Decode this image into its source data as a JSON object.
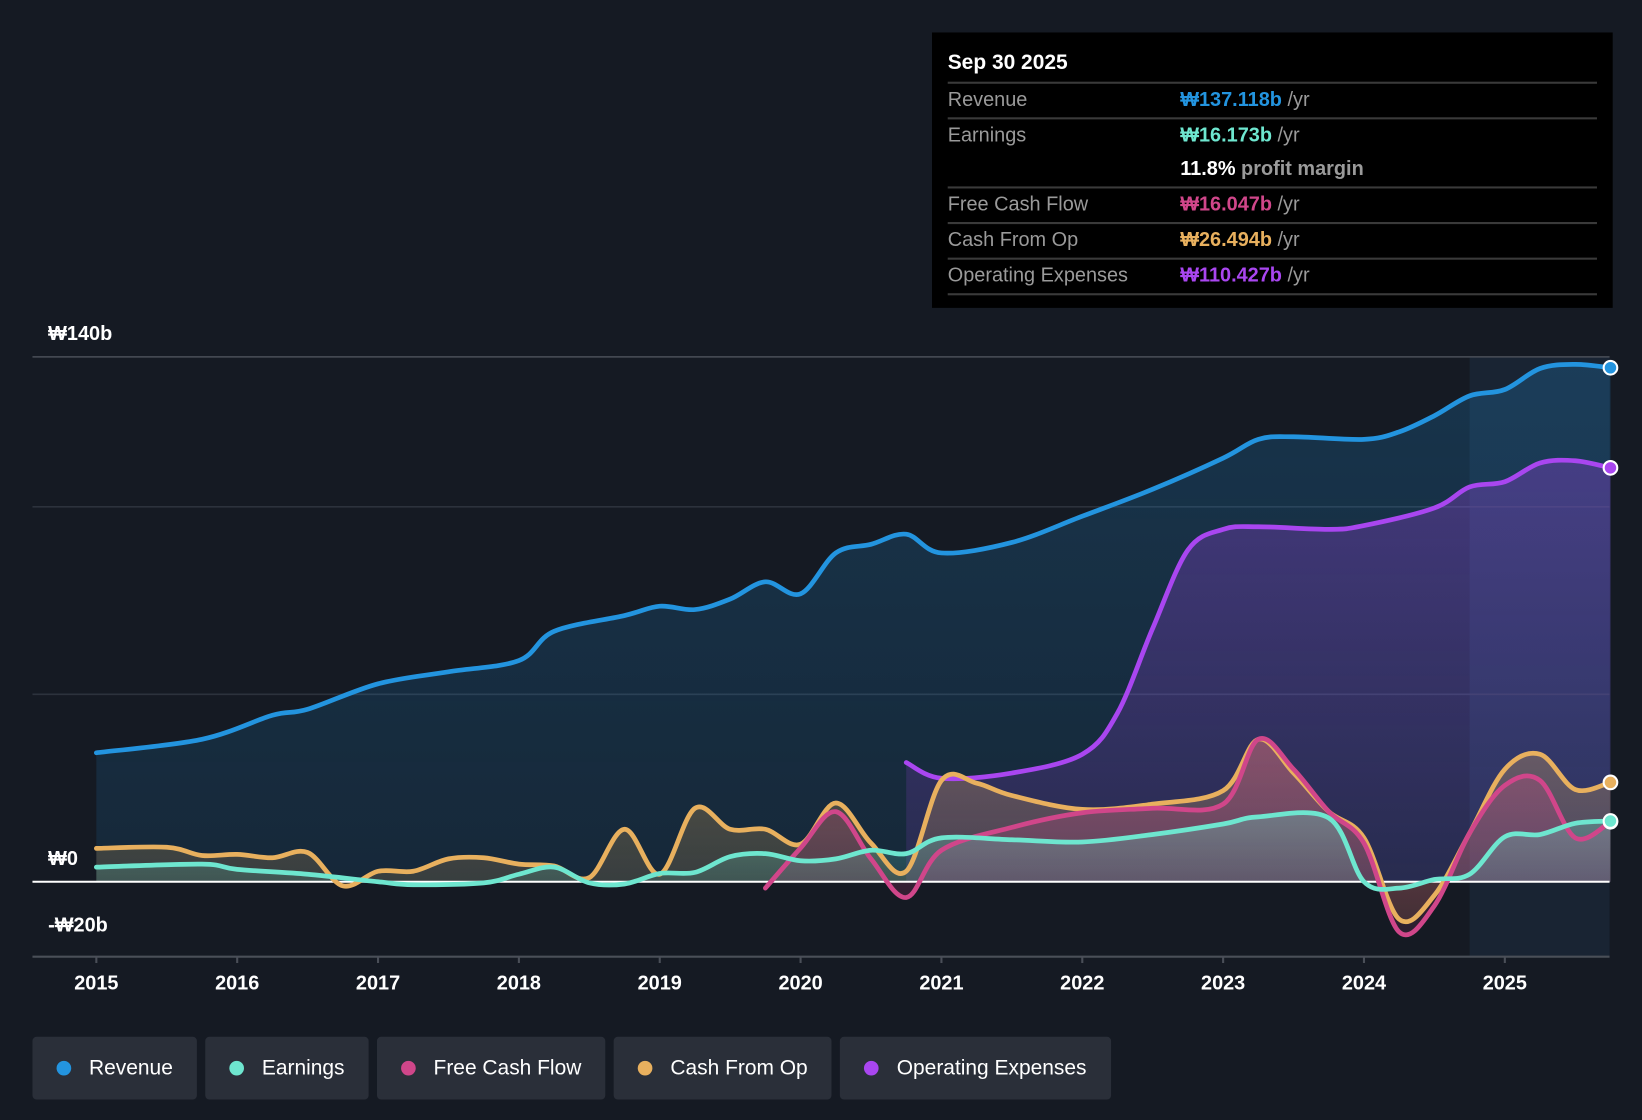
{
  "tooltip": {
    "date": "Sep 30 2025",
    "rows": [
      {
        "label": "Revenue",
        "value": "₩137.118b",
        "unit": "/yr",
        "color": "#2394df"
      },
      {
        "label": "Earnings",
        "value": "₩16.173b",
        "unit": "/yr",
        "color": "#6ee6cf"
      },
      {
        "label": "",
        "value": "11.8%",
        "unit": "profit margin",
        "color": "#ffffff"
      },
      {
        "label": "Free Cash Flow",
        "value": "₩16.047b",
        "unit": "/yr",
        "color": "#d0468a"
      },
      {
        "label": "Cash From Op",
        "value": "₩26.494b",
        "unit": "/yr",
        "color": "#e8b05e"
      },
      {
        "label": "Operating Expenses",
        "value": "₩110.427b",
        "unit": "/yr",
        "color": "#a946f0"
      }
    ]
  },
  "legend": [
    {
      "label": "Revenue",
      "color": "#2394df"
    },
    {
      "label": "Earnings",
      "color": "#6ee6cf"
    },
    {
      "label": "Free Cash Flow",
      "color": "#d0468a"
    },
    {
      "label": "Cash From Op",
      "color": "#e8b05e"
    },
    {
      "label": "Operating Expenses",
      "color": "#a946f0"
    }
  ],
  "chart_data": {
    "type": "line",
    "xlabel": "",
    "ylabel": "",
    "ylim": [
      -20,
      140
    ],
    "y_tick_labels": [
      {
        "v": 140,
        "label": "₩140b"
      },
      {
        "v": 0,
        "label": "₩0"
      },
      {
        "v": -20,
        "label": "-₩20b"
      }
    ],
    "gridlines": [
      140,
      100,
      50
    ],
    "x_ticks": [
      2015,
      2016,
      2017,
      2018,
      2019,
      2020,
      2021,
      2022,
      2023,
      2024,
      2025
    ],
    "xlim": [
      2014.55,
      2025.75
    ],
    "highlight_from": 2024.75,
    "series": [
      {
        "name": "Revenue",
        "color": "#2394df",
        "points": [
          [
            2015,
            34.4
          ],
          [
            2015.75,
            38
          ],
          [
            2016.25,
            44.4
          ],
          [
            2016.5,
            46
          ],
          [
            2017,
            52.8
          ],
          [
            2017.5,
            56
          ],
          [
            2018,
            59
          ],
          [
            2018.25,
            66.8
          ],
          [
            2018.75,
            71
          ],
          [
            2019,
            73.5
          ],
          [
            2019.25,
            72.6
          ],
          [
            2019.5,
            75.4
          ],
          [
            2019.75,
            80
          ],
          [
            2020,
            76.8
          ],
          [
            2020.25,
            87.7
          ],
          [
            2020.5,
            90
          ],
          [
            2020.75,
            92.7
          ],
          [
            2021,
            87.7
          ],
          [
            2021.5,
            90.5
          ],
          [
            2022,
            97.5
          ],
          [
            2022.5,
            104.7
          ],
          [
            2023,
            113
          ],
          [
            2023.25,
            118
          ],
          [
            2023.5,
            118.7
          ],
          [
            2024,
            118
          ],
          [
            2024.25,
            120
          ],
          [
            2024.5,
            124.3
          ],
          [
            2024.75,
            129.6
          ],
          [
            2025,
            131.3
          ],
          [
            2025.25,
            136.9
          ],
          [
            2025.5,
            138
          ],
          [
            2025.75,
            137.1
          ]
        ]
      },
      {
        "name": "Operating Expenses",
        "color": "#a946f0",
        "points": [
          [
            2020.75,
            31.8
          ],
          [
            2021,
            27.6
          ],
          [
            2021.5,
            29
          ],
          [
            2022,
            34
          ],
          [
            2022.25,
            45
          ],
          [
            2022.5,
            67.6
          ],
          [
            2022.75,
            88.5
          ],
          [
            2023,
            94
          ],
          [
            2023.25,
            94.7
          ],
          [
            2023.75,
            94
          ],
          [
            2024,
            95
          ],
          [
            2024.5,
            99.7
          ],
          [
            2024.75,
            105.3
          ],
          [
            2025,
            106.7
          ],
          [
            2025.25,
            111.7
          ],
          [
            2025.5,
            112.3
          ],
          [
            2025.75,
            110.4
          ]
        ]
      },
      {
        "name": "Cash From Op",
        "color": "#e8b05e",
        "points": [
          [
            2015,
            8.9
          ],
          [
            2015.5,
            9.2
          ],
          [
            2015.75,
            7
          ],
          [
            2016,
            7.3
          ],
          [
            2016.25,
            6.4
          ],
          [
            2016.5,
            7.8
          ],
          [
            2016.75,
            -1.1
          ],
          [
            2017,
            2.8
          ],
          [
            2017.25,
            2.8
          ],
          [
            2017.5,
            6.1
          ],
          [
            2017.75,
            6.4
          ],
          [
            2018,
            4.7
          ],
          [
            2018.25,
            4.2
          ],
          [
            2018.5,
            1.1
          ],
          [
            2018.75,
            14
          ],
          [
            2019,
            2
          ],
          [
            2019.25,
            19.6
          ],
          [
            2019.5,
            14
          ],
          [
            2019.75,
            14
          ],
          [
            2020,
            10
          ],
          [
            2020.25,
            21
          ],
          [
            2020.5,
            10.3
          ],
          [
            2020.75,
            2.8
          ],
          [
            2021,
            27
          ],
          [
            2021.25,
            26.3
          ],
          [
            2021.5,
            23
          ],
          [
            2022,
            19.3
          ],
          [
            2022.5,
            20.7
          ],
          [
            2023,
            24.3
          ],
          [
            2023.25,
            38
          ],
          [
            2023.5,
            29
          ],
          [
            2023.75,
            18.7
          ],
          [
            2024,
            11.7
          ],
          [
            2024.25,
            -10
          ],
          [
            2024.5,
            -3.6
          ],
          [
            2024.75,
            13
          ],
          [
            2025,
            30
          ],
          [
            2025.25,
            34
          ],
          [
            2025.5,
            24.6
          ],
          [
            2025.75,
            26.5
          ]
        ]
      },
      {
        "name": "Free Cash Flow",
        "color": "#d0468a",
        "points": [
          [
            2019.75,
            -1.7
          ],
          [
            2020,
            9
          ],
          [
            2020.25,
            18.7
          ],
          [
            2020.5,
            6.1
          ],
          [
            2020.75,
            -4.2
          ],
          [
            2021,
            8.4
          ],
          [
            2021.5,
            14.5
          ],
          [
            2022,
            18.4
          ],
          [
            2022.5,
            19.6
          ],
          [
            2023,
            20.7
          ],
          [
            2023.25,
            38
          ],
          [
            2023.5,
            30
          ],
          [
            2023.75,
            18.7
          ],
          [
            2024,
            10.3
          ],
          [
            2024.25,
            -13.4
          ],
          [
            2024.5,
            -6.4
          ],
          [
            2024.75,
            13
          ],
          [
            2025,
            25.7
          ],
          [
            2025.25,
            27
          ],
          [
            2025.5,
            11.7
          ],
          [
            2025.75,
            16
          ]
        ]
      },
      {
        "name": "Earnings",
        "color": "#6ee6cf",
        "points": [
          [
            2015,
            3.9
          ],
          [
            2015.75,
            4.7
          ],
          [
            2016,
            3.3
          ],
          [
            2016.5,
            2
          ],
          [
            2017,
            0
          ],
          [
            2017.25,
            -0.8
          ],
          [
            2017.75,
            -0.3
          ],
          [
            2018,
            2
          ],
          [
            2018.25,
            3.9
          ],
          [
            2018.5,
            -0.3
          ],
          [
            2018.75,
            -0.6
          ],
          [
            2019,
            2.2
          ],
          [
            2019.25,
            2.5
          ],
          [
            2019.5,
            6.7
          ],
          [
            2019.75,
            7.5
          ],
          [
            2020,
            5.6
          ],
          [
            2020.25,
            6.1
          ],
          [
            2020.5,
            8.4
          ],
          [
            2020.75,
            7.5
          ],
          [
            2021,
            11.7
          ],
          [
            2021.5,
            11.2
          ],
          [
            2022,
            10.6
          ],
          [
            2022.5,
            12.6
          ],
          [
            2023,
            15.4
          ],
          [
            2023.25,
            17.3
          ],
          [
            2023.75,
            17
          ],
          [
            2024,
            0
          ],
          [
            2024.25,
            -1.7
          ],
          [
            2024.5,
            0.6
          ],
          [
            2024.75,
            2
          ],
          [
            2025,
            12
          ],
          [
            2025.25,
            12.6
          ],
          [
            2025.5,
            15.6
          ],
          [
            2025.75,
            16.2
          ]
        ]
      }
    ]
  }
}
